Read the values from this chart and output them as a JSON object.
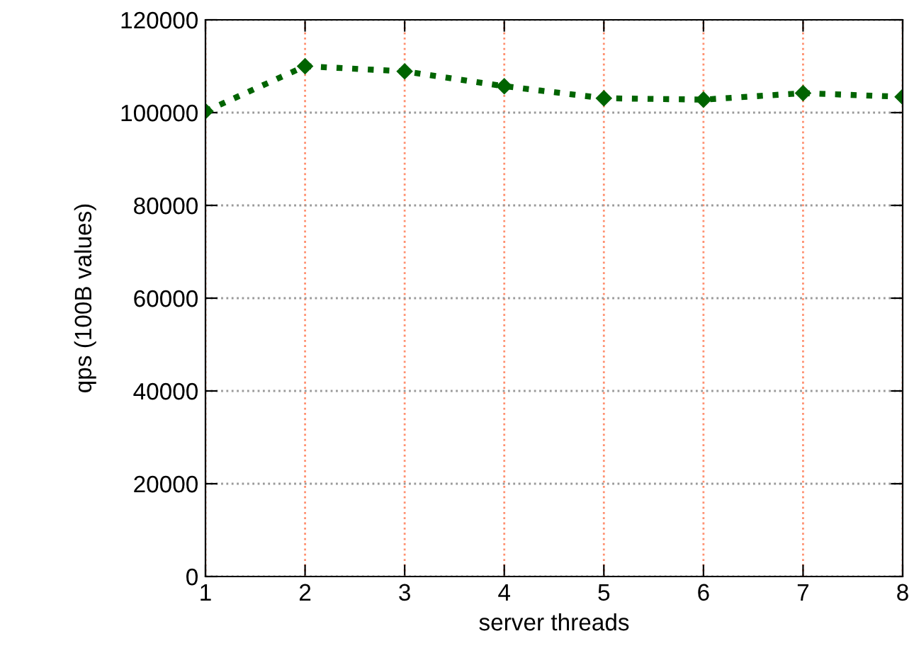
{
  "chart_data": {
    "type": "line",
    "xlabel": "server threads",
    "ylabel": "qps (100B values)",
    "x": [
      1,
      2,
      3,
      4,
      5,
      6,
      7,
      8
    ],
    "series": [
      {
        "color": "#006400",
        "values": [
          100300,
          110000,
          108900,
          105700,
          103100,
          102800,
          104200,
          103400
        ]
      }
    ],
    "xlim": [
      1,
      8
    ],
    "xticks": [
      1,
      2,
      3,
      4,
      5,
      6,
      7,
      8
    ],
    "ylim": [
      0,
      120000
    ],
    "yticks": [
      0,
      20000,
      40000,
      60000,
      80000,
      100000,
      120000
    ],
    "grid": true,
    "marker": "diamond",
    "line_style": "dotted",
    "legend": false
  }
}
